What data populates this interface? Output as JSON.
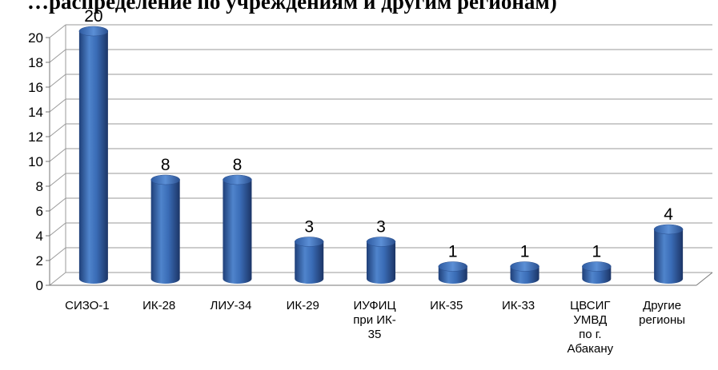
{
  "header": {
    "title": "…распределение по учреждениям и другим регионам)"
  },
  "chart_data": {
    "type": "bar",
    "style": "3d-cylinder",
    "bar_color": "#3d6fba",
    "grid": true,
    "ylim": [
      0,
      20
    ],
    "yticks": [
      0,
      2,
      4,
      6,
      8,
      10,
      12,
      14,
      16,
      18,
      20
    ],
    "categories": [
      [
        "СИЗО-1"
      ],
      [
        "ИК-28"
      ],
      [
        "ЛИУ-34"
      ],
      [
        "ИК-29"
      ],
      [
        "ИУФИЦ",
        "при ИК-",
        "35"
      ],
      [
        "ИК-35"
      ],
      [
        "ИК-33"
      ],
      [
        "ЦВСИГ",
        "УМВД",
        "по г.",
        "Абакану"
      ],
      [
        "Другие",
        "регионы"
      ]
    ],
    "values": [
      20,
      8,
      8,
      3,
      3,
      1,
      1,
      1,
      4
    ]
  }
}
